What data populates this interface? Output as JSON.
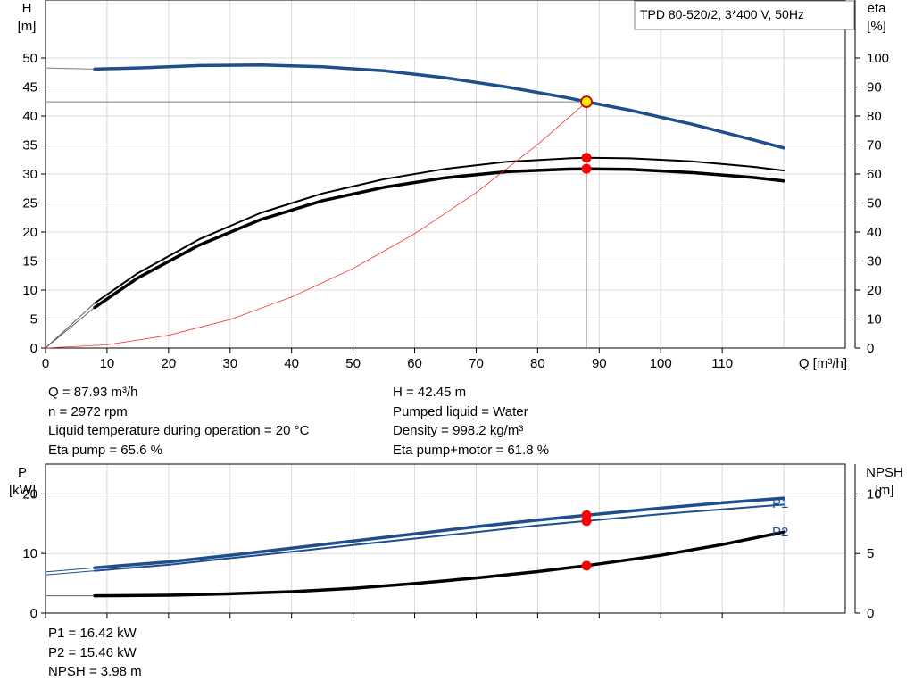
{
  "chart_data": [
    {
      "type": "line",
      "legend_box": "TPD 80-520/2, 3*400 V, 50Hz",
      "x_axis": {
        "label": "Q [m³/h]",
        "range": [
          0,
          130
        ],
        "ticks": [
          0,
          10,
          20,
          30,
          40,
          50,
          60,
          70,
          80,
          90,
          100,
          110
        ]
      },
      "y_left": {
        "label_top": "H",
        "label_unit": "[m]",
        "range": [
          0,
          60
        ],
        "ticks": [
          0,
          5,
          10,
          15,
          20,
          25,
          30,
          35,
          40,
          45,
          50
        ]
      },
      "y_right": {
        "label_top": "eta",
        "label_unit": "[%]",
        "range": [
          0,
          120
        ],
        "ticks": [
          0,
          10,
          20,
          30,
          40,
          50,
          60,
          70,
          80,
          90,
          100
        ]
      },
      "grid": true,
      "series": [
        {
          "key": "head_ext",
          "axis": "left",
          "color": "#808080",
          "width": 1,
          "points": [
            [
              0,
              48.3
            ],
            [
              8,
              48.1
            ]
          ]
        },
        {
          "key": "head",
          "axis": "left",
          "color": "#1f4e8c",
          "width": 3.5,
          "points": [
            [
              8,
              48.1
            ],
            [
              15,
              48.3
            ],
            [
              25,
              48.7
            ],
            [
              35,
              48.8
            ],
            [
              45,
              48.5
            ],
            [
              55,
              47.8
            ],
            [
              65,
              46.6
            ],
            [
              75,
              45.0
            ],
            [
              85,
              43.1
            ],
            [
              88,
              42.45
            ],
            [
              95,
              41.0
            ],
            [
              105,
              38.6
            ],
            [
              115,
              35.9
            ],
            [
              120,
              34.5
            ]
          ]
        },
        {
          "key": "eta_pump_ext",
          "axis": "right",
          "color": "#606060",
          "width": 1,
          "points": [
            [
              0,
              0
            ],
            [
              8,
              15.5
            ]
          ]
        },
        {
          "key": "eta_pump",
          "axis": "right",
          "color": "#000000",
          "width": 2,
          "points": [
            [
              8,
              15.5
            ],
            [
              15,
              25.8
            ],
            [
              25,
              37.5
            ],
            [
              35,
              46.6
            ],
            [
              45,
              53.3
            ],
            [
              55,
              58.2
            ],
            [
              65,
              61.8
            ],
            [
              75,
              64.2
            ],
            [
              85,
              65.4
            ],
            [
              88,
              65.6
            ],
            [
              95,
              65.4
            ],
            [
              105,
              64.4
            ],
            [
              115,
              62.5
            ],
            [
              120,
              61.2
            ]
          ]
        },
        {
          "key": "eta_total_ext",
          "axis": "right",
          "color": "#606060",
          "width": 1,
          "points": [
            [
              0,
              0
            ],
            [
              8,
              14.0
            ]
          ]
        },
        {
          "key": "eta_total",
          "axis": "right",
          "color": "#000000",
          "width": 3.5,
          "points": [
            [
              8,
              14.0
            ],
            [
              15,
              24.2
            ],
            [
              25,
              35.5
            ],
            [
              35,
              44.3
            ],
            [
              45,
              50.8
            ],
            [
              55,
              55.4
            ],
            [
              65,
              58.7
            ],
            [
              75,
              60.8
            ],
            [
              85,
              61.7
            ],
            [
              88,
              61.8
            ],
            [
              95,
              61.6
            ],
            [
              105,
              60.5
            ],
            [
              115,
              58.8
            ],
            [
              120,
              57.6
            ]
          ]
        },
        {
          "key": "system_curve",
          "axis": "left",
          "color": "#ff3030",
          "width": 0.8,
          "points": [
            [
              0,
              0
            ],
            [
              10,
              0.55
            ],
            [
              20,
              2.2
            ],
            [
              30,
              4.9
            ],
            [
              40,
              8.8
            ],
            [
              50,
              13.7
            ],
            [
              60,
              19.7
            ],
            [
              70,
              26.8
            ],
            [
              80,
              35.1
            ],
            [
              88,
              42.45
            ]
          ]
        }
      ],
      "operating_point": {
        "Q": 87.93,
        "H": 42.45,
        "eta_pump": 65.6,
        "eta_total": 61.8,
        "marker_fill": "#ffee00",
        "marker_stroke": "#d00000",
        "dot_color": "#ff0000"
      }
    },
    {
      "type": "line",
      "x_axis": {
        "range": [
          0,
          130
        ],
        "ticks": [
          0,
          10,
          20,
          30,
          40,
          50,
          60,
          70,
          80,
          90,
          100,
          110
        ]
      },
      "y_left": {
        "label_top": "P",
        "label_unit": "[kW]",
        "range": [
          0,
          25
        ],
        "ticks": [
          0,
          10,
          20
        ]
      },
      "y_right": {
        "label_top": "NPSH",
        "label_unit": "[m]",
        "range": [
          0,
          12.5
        ],
        "ticks": [
          0,
          5,
          10
        ]
      },
      "grid": true,
      "series": [
        {
          "key": "p1_ext",
          "axis": "left",
          "color": "#1f4e8c",
          "width": 1,
          "points": [
            [
              0,
              6.9
            ],
            [
              8,
              7.6
            ]
          ]
        },
        {
          "key": "p1",
          "name": "P1",
          "axis": "left",
          "color": "#1f4e8c",
          "width": 3.5,
          "points": [
            [
              8,
              7.6
            ],
            [
              20,
              8.6
            ],
            [
              30,
              9.7
            ],
            [
              40,
              10.9
            ],
            [
              50,
              12.1
            ],
            [
              60,
              13.3
            ],
            [
              70,
              14.5
            ],
            [
              80,
              15.6
            ],
            [
              88,
              16.42
            ],
            [
              100,
              17.6
            ],
            [
              110,
              18.5
            ],
            [
              120,
              19.3
            ]
          ]
        },
        {
          "key": "p2_ext",
          "axis": "left",
          "color": "#1f4e8c",
          "width": 1,
          "points": [
            [
              0,
              6.4
            ],
            [
              8,
              7.1
            ]
          ]
        },
        {
          "key": "p2",
          "name": "P2",
          "axis": "left",
          "color": "#1f4e8c",
          "width": 2,
          "points": [
            [
              8,
              7.1
            ],
            [
              20,
              8.1
            ],
            [
              30,
              9.2
            ],
            [
              40,
              10.3
            ],
            [
              50,
              11.4
            ],
            [
              60,
              12.5
            ],
            [
              70,
              13.6
            ],
            [
              80,
              14.7
            ],
            [
              88,
              15.46
            ],
            [
              100,
              16.6
            ],
            [
              110,
              17.4
            ],
            [
              120,
              18.2
            ]
          ]
        },
        {
          "key": "npsh_ext",
          "axis": "right",
          "color": "#606060",
          "width": 1,
          "points": [
            [
              0,
              1.45
            ],
            [
              8,
              1.45
            ]
          ]
        },
        {
          "key": "npsh",
          "axis": "right",
          "color": "#000000",
          "width": 3.5,
          "points": [
            [
              8,
              1.45
            ],
            [
              20,
              1.5
            ],
            [
              30,
              1.62
            ],
            [
              40,
              1.8
            ],
            [
              50,
              2.08
            ],
            [
              60,
              2.48
            ],
            [
              70,
              2.95
            ],
            [
              80,
              3.48
            ],
            [
              88,
              3.98
            ],
            [
              100,
              4.85
            ],
            [
              110,
              5.75
            ],
            [
              120,
              6.8
            ]
          ]
        }
      ],
      "operating_point": {
        "Q": 87.93,
        "P1": 16.42,
        "P2": 15.46,
        "NPSH": 3.98,
        "dot_color": "#ff0000"
      }
    }
  ],
  "info_top": {
    "left": [
      "Q = 87.93 m³/h",
      "n = 2972 rpm",
      "Liquid temperature during operation = 20 °C",
      "Eta pump = 65.6 %"
    ],
    "right": [
      "H = 42.45 m",
      "Pumped liquid = Water",
      "Density = 998.2 kg/m³",
      "Eta pump+motor = 61.8 %"
    ]
  },
  "info_bottom": [
    "P1 = 16.42 kW",
    "P2 = 15.46 kW",
    "NPSH = 3.98 m"
  ]
}
